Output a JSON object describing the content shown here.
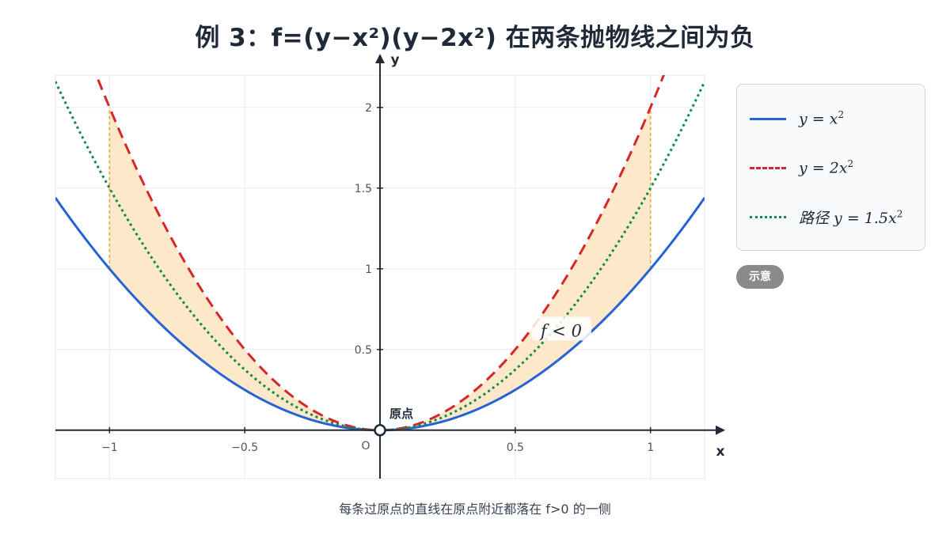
{
  "title": "例 3：f=(y−x²)(y−2x²) 在两条抛物线之间为负",
  "chart_data": {
    "type": "line",
    "xlabel": "x",
    "ylabel": "y",
    "origin_label": "O",
    "xlim": [
      -1.2,
      1.2
    ],
    "ylim": [
      -0.3,
      2.2
    ],
    "x_ticks": [
      -1,
      -0.5,
      0.5,
      1
    ],
    "x_tick_labels": [
      "−1",
      "−0.5",
      "0.5",
      "1"
    ],
    "y_ticks": [
      0.5,
      1,
      1.5,
      2
    ],
    "y_tick_labels": [
      "0.5",
      "1",
      "1.5",
      "2"
    ],
    "grid": true,
    "series": [
      {
        "name": "y = x²",
        "coef": 1.0,
        "color": "#2563d6",
        "style": "solid"
      },
      {
        "name": "y = 2x²",
        "coef": 2.0,
        "color": "#d62728",
        "style": "dashed"
      },
      {
        "name": "路径 y = 1.5x²",
        "coef": 1.5,
        "color": "#0f8a4f",
        "style": "dotted"
      }
    ],
    "shaded_region": {
      "between_coefs": [
        1,
        2
      ],
      "x_range": [
        -1,
        1
      ],
      "color": "#fde5c4",
      "label": "f < 0"
    },
    "point": {
      "x": 0,
      "y": 0,
      "label": "原点"
    }
  },
  "legend": {
    "items": [
      {
        "prefix": "",
        "var": "y = x",
        "sup": "2",
        "color": "#2563d6",
        "style": "solid"
      },
      {
        "prefix": "",
        "var": "y = 2x",
        "sup": "2",
        "color": "#d62728",
        "style": "dashed"
      },
      {
        "prefix": "路径 ",
        "var": "y = 1.5x",
        "sup": "2",
        "color": "#0f8a4f",
        "style": "dotted"
      }
    ]
  },
  "badge": "示意",
  "caption": "每条过原点的直线在原点附近都落在 f>0 的一侧"
}
